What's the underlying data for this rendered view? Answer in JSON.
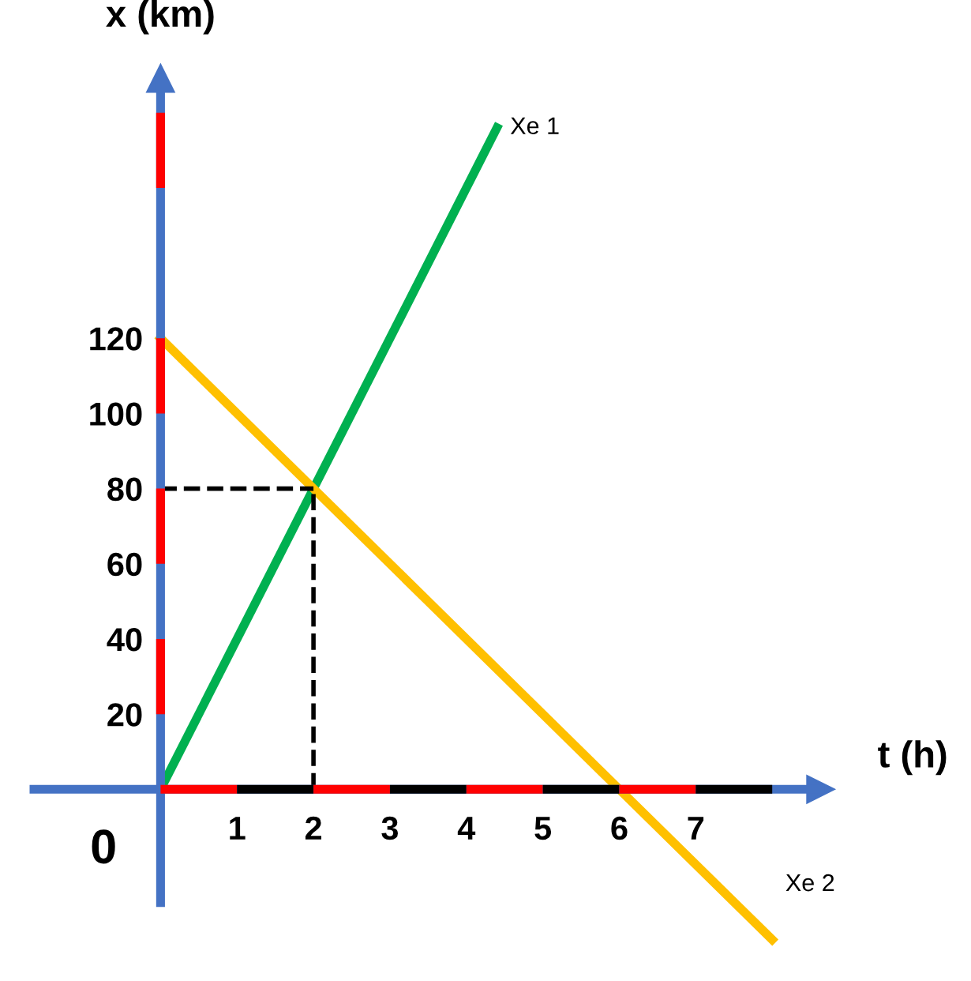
{
  "chart_data": {
    "type": "line",
    "xlabel": "t (h)",
    "ylabel": "x (km)",
    "series": [
      {
        "name": "Xe 1",
        "color": "#00b050",
        "x": [
          0,
          4.4
        ],
        "values": [
          0,
          176
        ]
      },
      {
        "name": "Xe 2",
        "color": "#ffc000",
        "x": [
          0,
          8
        ],
        "values": [
          120,
          -40
        ]
      }
    ],
    "xlim": [
      -2.1,
      10.6
    ],
    "ylim": [
      -51,
      210
    ],
    "xticks": [
      1,
      2,
      3,
      4,
      5,
      6,
      7
    ],
    "yticks": [
      20,
      40,
      60,
      80,
      100,
      120
    ],
    "ref_lines": [
      {
        "axis": "x",
        "value": 2,
        "color": "#000000",
        "line_style": "dashed"
      },
      {
        "axis": "y",
        "value": 80,
        "color": "#000000",
        "line_style": "dashed"
      }
    ],
    "annotations": [
      {
        "text": "0",
        "x": 0,
        "y": 0
      }
    ],
    "grid": false,
    "legend": false,
    "marker": "none",
    "line_style": "solid"
  }
}
